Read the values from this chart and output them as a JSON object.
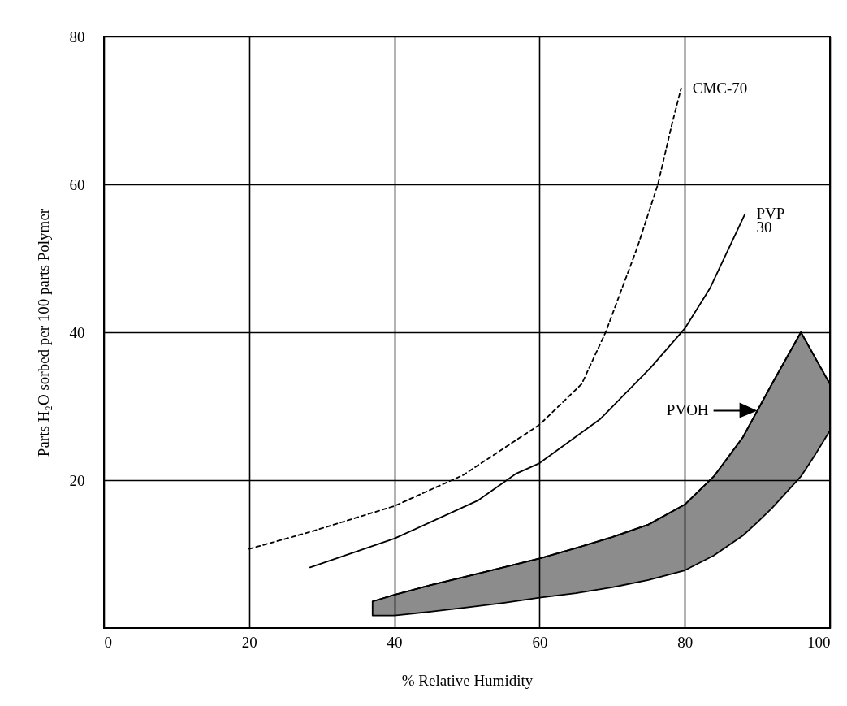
{
  "chart_data": {
    "type": "line",
    "xlabel": "% Relative Humidity",
    "ylabel": "Parts H₂O sorbed per 100 parts Polymer",
    "xlim": [
      0,
      100
    ],
    "ylim": [
      0,
      80
    ],
    "xticks": [
      0,
      20,
      40,
      60,
      80,
      100
    ],
    "yticks": [
      20,
      40,
      60,
      80
    ],
    "grid": true,
    "series": [
      {
        "name": "CMC-70",
        "color": "#000000",
        "line_style": "dashed",
        "x": [
          20,
          28.4,
          40,
          49.5,
          60,
          65.8,
          69.1,
          73.4,
          76.3,
          78.2,
          79.5
        ],
        "values": [
          10.7,
          13,
          16.5,
          20.7,
          27.5,
          33,
          40,
          51.3,
          60,
          68,
          73
        ]
      },
      {
        "name": "PVP 30",
        "color": "#000000",
        "line_style": "solid",
        "x": [
          28.4,
          40,
          51.6,
          56.8,
          60,
          68.4,
          75.3,
          80,
          83.5,
          88.3
        ],
        "values": [
          8.2,
          12.1,
          17.3,
          20.9,
          22.3,
          28.3,
          35.2,
          40.5,
          46,
          56
        ]
      },
      {
        "name": "PVOH",
        "type": "line",
        "color": "#000000",
        "line_style": "solid",
        "x": [
          37,
          40,
          45,
          50,
          55,
          60,
          65,
          70,
          75,
          80,
          84,
          88,
          90,
          92,
          96,
          98,
          100
        ],
        "values": [
          3.6,
          4.5,
          5.8,
          7,
          8.2,
          9.4,
          10.8,
          12.3,
          14,
          16.7,
          20.5,
          25.8,
          29.4,
          33,
          40,
          36.5,
          33
        ],
        "upper": [
          3.6,
          4.5,
          5.8,
          7,
          8.2,
          9.4,
          10.8,
          12.3,
          14,
          16.7,
          20.5,
          25.8,
          29.4,
          33,
          40,
          36.5,
          33
        ],
        "lower": [
          1.7,
          1.7,
          2.2,
          2.8,
          3.4,
          4.1,
          4.7,
          5.5,
          6.5,
          7.8,
          9.8,
          12.5,
          14.3,
          16.2,
          20.5,
          23.5,
          26.7
        ]
      }
    ]
  }
}
